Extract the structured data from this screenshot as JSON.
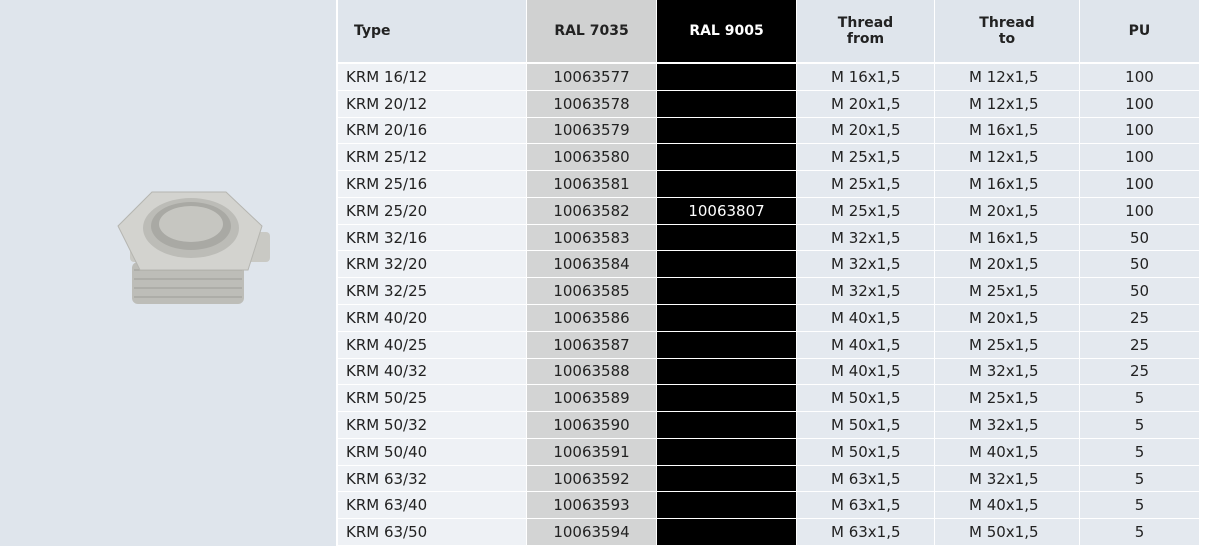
{
  "table": {
    "header": [
      "Type",
      "RAL 7035",
      "RAL 9005",
      "Thread from",
      "Thread to",
      "PU"
    ],
    "rows": [
      [
        "KRM 16/12",
        "10063577",
        null,
        "M 16x1,5",
        "M 12x1,5",
        100
      ],
      [
        "KRM 20/12",
        "10063578",
        null,
        "M 20x1,5",
        "M 12x1,5",
        100
      ],
      [
        "KRM 20/16",
        "10063579",
        null,
        "M 20x1,5",
        "M 16x1,5",
        100
      ],
      [
        "KRM 25/12",
        "10063580",
        null,
        "M 25x1,5",
        "M 12x1,5",
        100
      ],
      [
        "KRM 25/16",
        "10063581",
        null,
        "M 25x1,5",
        "M 16x1,5",
        100
      ],
      [
        "KRM 25/20",
        "10063582",
        "10063807",
        "M 25x1,5",
        "M 20x1,5",
        100
      ],
      [
        "KRM 32/16",
        "10063583",
        null,
        "M 32x1,5",
        "M 16x1,5",
        50
      ],
      [
        "KRM 32/20",
        "10063584",
        null,
        "M 32x1,5",
        "M 20x1,5",
        50
      ],
      [
        "KRM 32/25",
        "10063585",
        null,
        "M 32x1,5",
        "M 25x1,5",
        50
      ],
      [
        "KRM 40/20",
        "10063586",
        null,
        "M 40x1,5",
        "M 20x1,5",
        25
      ],
      [
        "KRM 40/25",
        "10063587",
        null,
        "M 40x1,5",
        "M 25x1,5",
        25
      ],
      [
        "KRM 40/32",
        "10063588",
        null,
        "M 40x1,5",
        "M 32x1,5",
        25
      ],
      [
        "KRM 50/25",
        "10063589",
        null,
        "M 50x1,5",
        "M 25x1,5",
        5
      ],
      [
        "KRM 50/32",
        "10063590",
        null,
        "M 50x1,5",
        "M 32x1,5",
        5
      ],
      [
        "KRM 50/40",
        "10063591",
        null,
        "M 50x1,5",
        "M 40x1,5",
        5
      ],
      [
        "KRM 63/32",
        "10063592",
        null,
        "M 63x1,5",
        "M 32x1,5",
        5
      ],
      [
        "KRM 63/40",
        "10063593",
        null,
        "M 63x1,5",
        "M 40x1,5",
        5
      ],
      [
        "KRM 63/50",
        "10063594",
        null,
        "M 63x1,5",
        "M 50x1,5",
        5
      ]
    ]
  }
}
